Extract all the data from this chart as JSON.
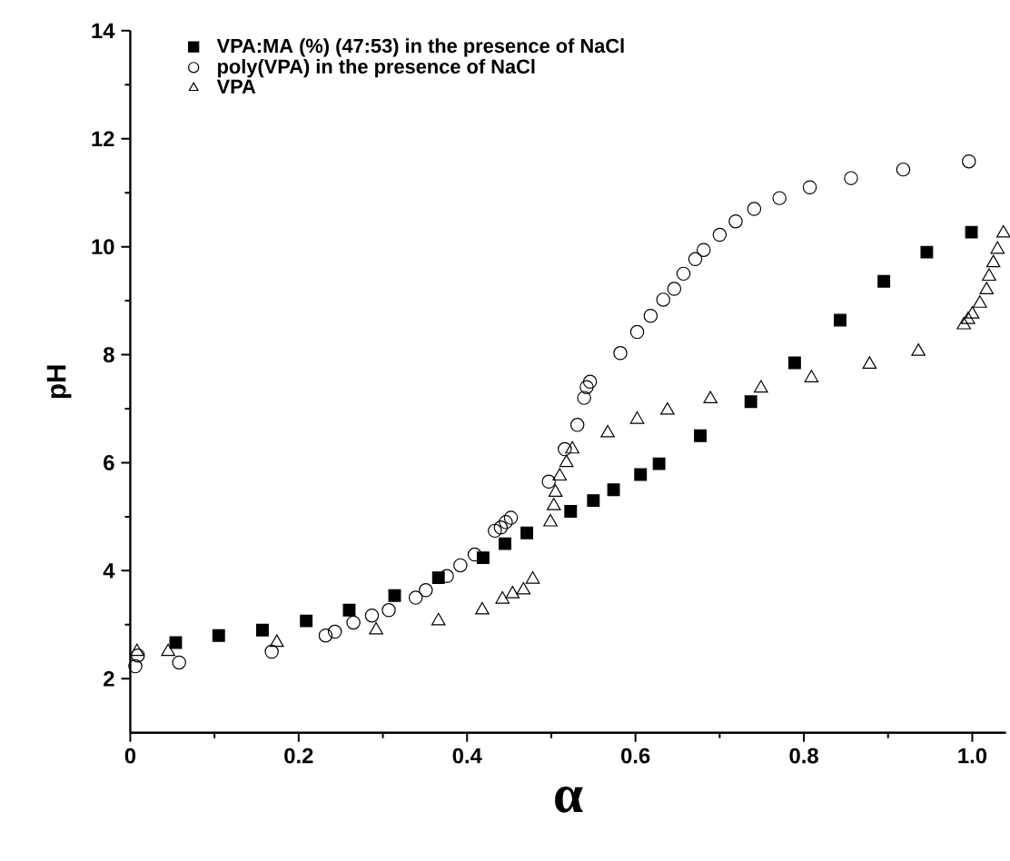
{
  "chart_data": {
    "type": "scatter",
    "xlabel": "α",
    "ylabel": "pH",
    "xlim": [
      0,
      1.04
    ],
    "ylim": [
      1,
      14
    ],
    "xticks": [
      0,
      0.2,
      0.4,
      0.6,
      0.8,
      {
        "value": 1.0,
        "label": "1.0"
      }
    ],
    "yticks": [
      2,
      4,
      6,
      8,
      10,
      12,
      14
    ],
    "legend": "top left",
    "grid": false,
    "series": [
      {
        "name": "VPA:MA (%) (47:53) in the presence of NaCl",
        "color": "#000000",
        "marker": "square",
        "x": [
          0.054,
          0.105,
          0.157,
          0.209,
          0.26,
          0.314,
          0.366,
          0.419,
          0.445,
          0.471,
          0.523,
          0.55,
          0.574,
          0.606,
          0.628,
          0.677,
          0.737,
          0.789,
          0.843,
          0.895,
          0.946,
          0.999
        ],
        "values": [
          2.67,
          2.8,
          2.9,
          3.07,
          3.27,
          3.54,
          3.87,
          4.24,
          4.5,
          4.7,
          5.1,
          5.3,
          5.5,
          5.78,
          5.98,
          6.5,
          7.13,
          7.85,
          8.64,
          9.36,
          9.9,
          10.27
        ]
      },
      {
        "name": "poly(VPA) in the presence of NaCl",
        "color": "#000000",
        "marker": "circle",
        "x": [
          0.006,
          0.009,
          0.058,
          0.168,
          0.232,
          0.243,
          0.265,
          0.287,
          0.307,
          0.339,
          0.351,
          0.376,
          0.392,
          0.409,
          0.433,
          0.44,
          0.446,
          0.452,
          0.497,
          0.516,
          0.531,
          0.539,
          0.542,
          0.546,
          0.582,
          0.602,
          0.618,
          0.633,
          0.646,
          0.657,
          0.671,
          0.681,
          0.7,
          0.719,
          0.741,
          0.771,
          0.807,
          0.856,
          0.918,
          0.996
        ],
        "values": [
          2.23,
          2.43,
          2.3,
          2.5,
          2.8,
          2.87,
          3.04,
          3.17,
          3.27,
          3.5,
          3.64,
          3.9,
          4.1,
          4.3,
          4.74,
          4.8,
          4.9,
          4.98,
          5.65,
          6.25,
          6.7,
          7.2,
          7.4,
          7.5,
          8.03,
          8.42,
          8.72,
          9.02,
          9.22,
          9.5,
          9.77,
          9.94,
          10.22,
          10.47,
          10.7,
          10.9,
          11.1,
          11.27,
          11.43,
          11.58
        ]
      },
      {
        "name": "VPA",
        "color": "#000000",
        "marker": "triangle",
        "x": [
          0.008,
          0.045,
          0.174,
          0.292,
          0.366,
          0.418,
          0.442,
          0.454,
          0.467,
          0.478,
          0.499,
          0.503,
          0.505,
          0.51,
          0.518,
          0.525,
          0.567,
          0.602,
          0.638,
          0.689,
          0.749,
          0.809,
          0.878,
          0.936,
          0.99,
          0.995,
          1.0,
          1.009,
          1.017,
          1.02,
          1.025,
          1.03,
          1.037
        ],
        "values": [
          2.5,
          2.5,
          2.67,
          2.9,
          3.07,
          3.27,
          3.47,
          3.57,
          3.64,
          3.84,
          4.9,
          5.2,
          5.45,
          5.75,
          6.0,
          6.25,
          6.55,
          6.8,
          6.97,
          7.18,
          7.38,
          7.57,
          7.82,
          8.06,
          8.55,
          8.65,
          8.75,
          8.95,
          9.2,
          9.45,
          9.7,
          9.95,
          10.25
        ]
      }
    ]
  }
}
